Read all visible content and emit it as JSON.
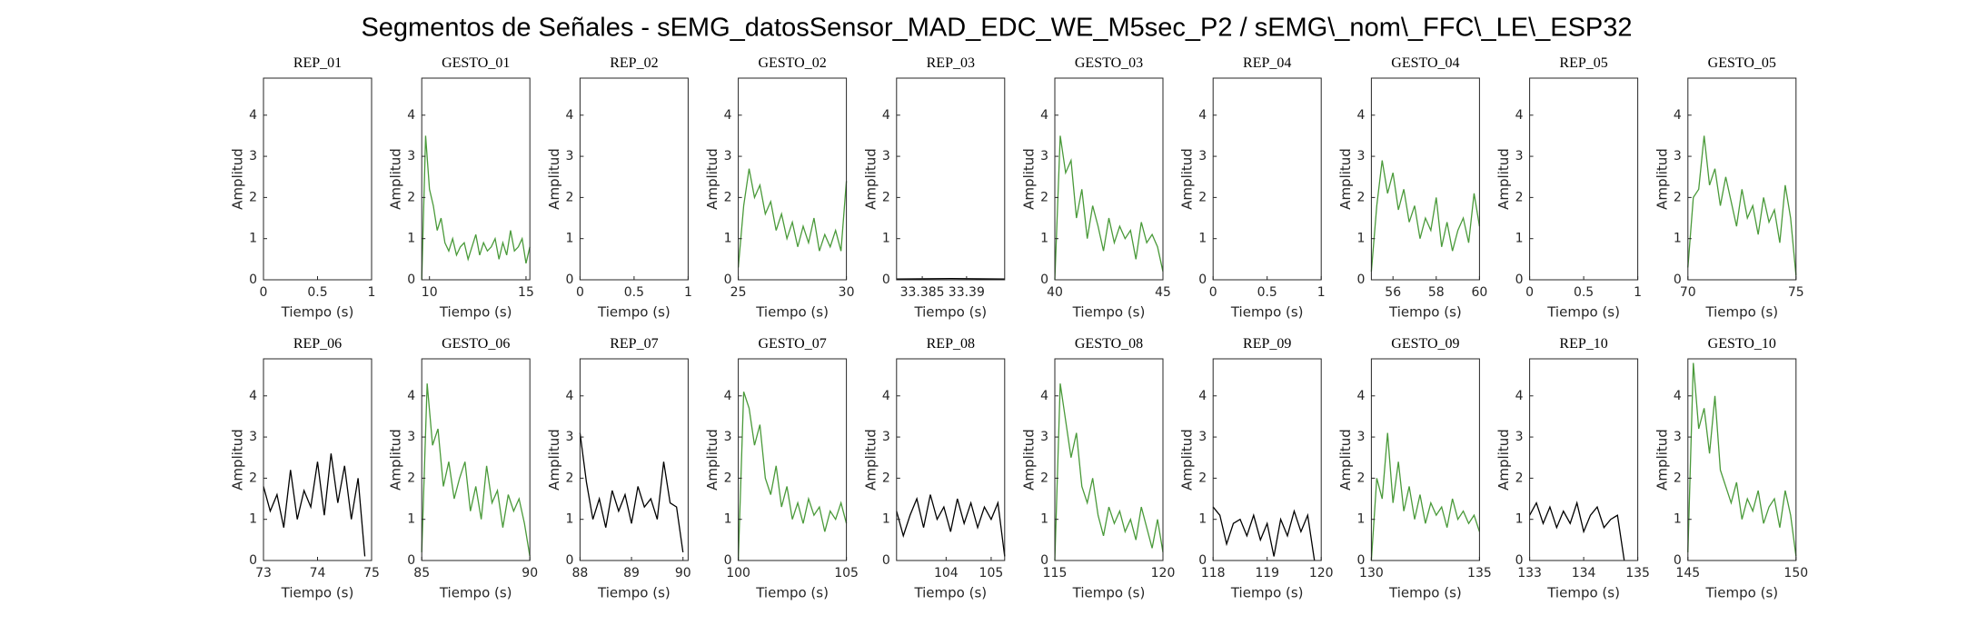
{
  "title": "Segmentos de Señales - sEMG_datosSensor_MAD_EDC_WE_M5sec_P2 / sEMG\\_nom\\_FFC\\_LE\\_ESP32",
  "chart_data": [
    {
      "type": "line",
      "title": "REP_01",
      "xlabel": "Tiempo (s)",
      "ylabel": "Amplitud",
      "xlim": [
        0,
        1
      ],
      "xticks": [
        0,
        0.5,
        1
      ],
      "ylim": [
        0,
        4.9
      ],
      "yticks": [
        0,
        1,
        2,
        3,
        4
      ]
    },
    {
      "type": "line",
      "title": "GESTO_01",
      "xlabel": "Tiempo (s)",
      "ylabel": "Amplitud",
      "xlim": [
        9.6,
        15.2
      ],
      "xticks": [
        10,
        15
      ],
      "ylim": [
        0,
        4.9
      ],
      "yticks": [
        0,
        1,
        2,
        3,
        4
      ],
      "color": "#4a9a3a",
      "x": [
        9.6,
        9.8,
        10,
        10.2,
        10.4,
        10.6,
        10.8,
        11,
        11.2,
        11.4,
        11.6,
        11.8,
        12,
        12.2,
        12.4,
        12.6,
        12.8,
        13,
        13.2,
        13.4,
        13.6,
        13.8,
        14,
        14.2,
        14.4,
        14.6,
        14.8,
        15,
        15.2
      ],
      "values": [
        0,
        3.5,
        2.2,
        1.8,
        1.2,
        1.5,
        0.9,
        0.7,
        1.0,
        0.6,
        0.8,
        0.9,
        0.5,
        0.8,
        1.1,
        0.6,
        0.9,
        0.7,
        0.8,
        1.0,
        0.5,
        0.9,
        0.6,
        1.2,
        0.7,
        0.8,
        1.0,
        0.4,
        0.8
      ]
    },
    {
      "type": "line",
      "title": "REP_02",
      "xlabel": "Tiempo (s)",
      "ylabel": "Amplitud",
      "xlim": [
        0,
        1
      ],
      "xticks": [
        0,
        0.5,
        1
      ],
      "ylim": [
        0,
        4.9
      ],
      "yticks": [
        0,
        1,
        2,
        3,
        4
      ]
    },
    {
      "type": "line",
      "title": "GESTO_02",
      "xlabel": "Tiempo (s)",
      "ylabel": "Amplitud",
      "xlim": [
        25,
        30
      ],
      "xticks": [
        25,
        30
      ],
      "ylim": [
        0,
        4.9
      ],
      "yticks": [
        0,
        1,
        2,
        3,
        4
      ],
      "color": "#4a9a3a",
      "x": [
        25,
        25.25,
        25.5,
        25.75,
        26,
        26.25,
        26.5,
        26.75,
        27,
        27.25,
        27.5,
        27.75,
        28,
        28.25,
        28.5,
        28.75,
        29,
        29.25,
        29.5,
        29.75,
        30
      ],
      "values": [
        0.3,
        1.8,
        2.7,
        2.0,
        2.3,
        1.6,
        1.9,
        1.2,
        1.6,
        1.0,
        1.4,
        0.8,
        1.3,
        0.9,
        1.5,
        0.7,
        1.1,
        0.8,
        1.2,
        0.7,
        2.4
      ]
    },
    {
      "type": "line",
      "title": "REP_03",
      "xlabel": "Tiempo (s)",
      "ylabel": "Amplitud",
      "xlim": [
        33.3821,
        33.3943
      ],
      "xticks": [
        33.385,
        33.39
      ],
      "ylim": [
        0,
        4.9
      ],
      "yticks": [
        0,
        1,
        2,
        3,
        4
      ],
      "color": "#000000",
      "x": [
        33.3821,
        33.3882,
        33.3943
      ],
      "values": [
        0.02,
        0.03,
        0.02
      ]
    },
    {
      "type": "line",
      "title": "GESTO_03",
      "xlabel": "Tiempo (s)",
      "ylabel": "Amplitud",
      "xlim": [
        40,
        45
      ],
      "xticks": [
        40,
        45
      ],
      "ylim": [
        0,
        4.9
      ],
      "yticks": [
        0,
        1,
        2,
        3,
        4
      ],
      "color": "#4a9a3a",
      "x": [
        40,
        40.25,
        40.5,
        40.75,
        41,
        41.25,
        41.5,
        41.75,
        42,
        42.25,
        42.5,
        42.75,
        43,
        43.25,
        43.5,
        43.75,
        44,
        44.25,
        44.5,
        44.75,
        45
      ],
      "values": [
        0,
        3.5,
        2.6,
        2.9,
        1.5,
        2.2,
        1.0,
        1.8,
        1.3,
        0.7,
        1.5,
        0.9,
        1.3,
        1.0,
        1.2,
        0.5,
        1.4,
        0.9,
        1.1,
        0.8,
        0.2
      ]
    },
    {
      "type": "line",
      "title": "REP_04",
      "xlabel": "Tiempo (s)",
      "ylabel": "Amplitud",
      "xlim": [
        0,
        1
      ],
      "xticks": [
        0,
        0.5,
        1
      ],
      "ylim": [
        0,
        4.9
      ],
      "yticks": [
        0,
        1,
        2,
        3,
        4
      ]
    },
    {
      "type": "line",
      "title": "GESTO_04",
      "xlabel": "Tiempo (s)",
      "ylabel": "Amplitud",
      "xlim": [
        55,
        60
      ],
      "xticks": [
        56,
        58,
        60
      ],
      "ylim": [
        0,
        4.9
      ],
      "yticks": [
        0,
        1,
        2,
        3,
        4
      ],
      "color": "#4a9a3a",
      "x": [
        55,
        55.25,
        55.5,
        55.75,
        56,
        56.25,
        56.5,
        56.75,
        57,
        57.25,
        57.5,
        57.75,
        58,
        58.25,
        58.5,
        58.75,
        59,
        59.25,
        59.5,
        59.75,
        60
      ],
      "values": [
        0.2,
        1.8,
        2.9,
        2.1,
        2.6,
        1.7,
        2.2,
        1.4,
        1.8,
        1.0,
        1.5,
        1.2,
        2.0,
        0.8,
        1.4,
        0.7,
        1.2,
        1.5,
        0.9,
        2.1,
        1.3
      ]
    },
    {
      "type": "line",
      "title": "REP_05",
      "xlabel": "Tiempo (s)",
      "ylabel": "Amplitud",
      "xlim": [
        0,
        1
      ],
      "xticks": [
        0,
        0.5,
        1
      ],
      "ylim": [
        0,
        4.9
      ],
      "yticks": [
        0,
        1,
        2,
        3,
        4
      ]
    },
    {
      "type": "line",
      "title": "GESTO_05",
      "xlabel": "Tiempo (s)",
      "ylabel": "Amplitud",
      "xlim": [
        70,
        75
      ],
      "xticks": [
        70,
        75
      ],
      "ylim": [
        0,
        4.9
      ],
      "yticks": [
        0,
        1,
        2,
        3,
        4
      ],
      "color": "#4a9a3a",
      "x": [
        70,
        70.25,
        70.5,
        70.75,
        71,
        71.25,
        71.5,
        71.75,
        72,
        72.25,
        72.5,
        72.75,
        73,
        73.25,
        73.5,
        73.75,
        74,
        74.25,
        74.5,
        74.75,
        75
      ],
      "values": [
        0.3,
        2.0,
        2.2,
        3.5,
        2.3,
        2.7,
        1.8,
        2.5,
        1.9,
        1.3,
        2.2,
        1.5,
        1.8,
        1.1,
        2.0,
        1.4,
        1.7,
        0.9,
        2.3,
        1.5,
        0.1
      ]
    },
    {
      "type": "line",
      "title": "REP_06",
      "xlabel": "Tiempo (s)",
      "ylabel": "Amplitud",
      "xlim": [
        73,
        75
      ],
      "xticks": [
        73,
        74,
        75
      ],
      "ylim": [
        0,
        4.9
      ],
      "yticks": [
        0,
        1,
        2,
        3,
        4
      ],
      "color": "#000000",
      "x": [
        73,
        73.125,
        73.25,
        73.375,
        73.5,
        73.625,
        73.75,
        73.875,
        74,
        74.125,
        74.25,
        74.375,
        74.5,
        74.625,
        74.75,
        74.875
      ],
      "values": [
        1.8,
        1.2,
        1.6,
        0.8,
        2.2,
        1.0,
        1.7,
        1.3,
        2.4,
        1.1,
        2.6,
        1.4,
        2.3,
        1.0,
        2.0,
        0.1
      ]
    },
    {
      "type": "line",
      "title": "GESTO_06",
      "xlabel": "Tiempo (s)",
      "ylabel": "Amplitud",
      "xlim": [
        85,
        90
      ],
      "xticks": [
        85,
        90
      ],
      "ylim": [
        0,
        4.9
      ],
      "yticks": [
        0,
        1,
        2,
        3,
        4
      ],
      "color": "#4a9a3a",
      "x": [
        85,
        85.25,
        85.5,
        85.75,
        86,
        86.25,
        86.5,
        86.75,
        87,
        87.25,
        87.5,
        87.75,
        88,
        88.25,
        88.5,
        88.75,
        89,
        89.25,
        89.5,
        89.75,
        90
      ],
      "values": [
        0.2,
        4.3,
        2.8,
        3.2,
        1.8,
        2.4,
        1.5,
        2.0,
        2.4,
        1.2,
        1.8,
        1.0,
        2.3,
        1.4,
        1.7,
        0.8,
        1.6,
        1.2,
        1.5,
        0.9,
        0.1
      ]
    },
    {
      "type": "line",
      "title": "REP_07",
      "xlabel": "Tiempo (s)",
      "ylabel": "Amplitud",
      "xlim": [
        88,
        90.1
      ],
      "xticks": [
        88,
        89,
        90
      ],
      "ylim": [
        0,
        4.9
      ],
      "yticks": [
        0,
        1,
        2,
        3,
        4
      ],
      "color": "#000000",
      "x": [
        88,
        88.125,
        88.25,
        88.375,
        88.5,
        88.625,
        88.75,
        88.875,
        89,
        89.125,
        89.25,
        89.375,
        89.5,
        89.625,
        89.75,
        89.875,
        90
      ],
      "values": [
        3.1,
        1.9,
        1.0,
        1.5,
        0.8,
        1.7,
        1.2,
        1.6,
        0.9,
        1.8,
        1.3,
        1.5,
        1.0,
        2.4,
        1.4,
        1.3,
        0.2
      ]
    },
    {
      "type": "line",
      "title": "GESTO_07",
      "xlabel": "Tiempo (s)",
      "ylabel": "Amplitud",
      "xlim": [
        100,
        105
      ],
      "xticks": [
        100,
        105
      ],
      "ylim": [
        0,
        4.9
      ],
      "yticks": [
        0,
        1,
        2,
        3,
        4
      ],
      "color": "#4a9a3a",
      "x": [
        100,
        100.25,
        100.5,
        100.75,
        101,
        101.25,
        101.5,
        101.75,
        102,
        102.25,
        102.5,
        102.75,
        103,
        103.25,
        103.5,
        103.75,
        104,
        104.25,
        104.5,
        104.75,
        105
      ],
      "values": [
        0,
        4.1,
        3.7,
        2.8,
        3.3,
        2.0,
        1.6,
        2.3,
        1.3,
        1.8,
        1.0,
        1.4,
        0.9,
        1.5,
        1.1,
        1.3,
        0.7,
        1.2,
        1.0,
        1.4,
        0.9
      ]
    },
    {
      "type": "line",
      "title": "REP_08",
      "xlabel": "Tiempo (s)",
      "ylabel": "Amplitud",
      "xlim": [
        102.9,
        105.3
      ],
      "xticks": [
        104,
        105
      ],
      "ylim": [
        0,
        4.9
      ],
      "yticks": [
        0,
        1,
        2,
        3,
        4
      ],
      "color": "#000000",
      "x": [
        102.9,
        103.05,
        103.2,
        103.35,
        103.5,
        103.65,
        103.8,
        103.95,
        104.1,
        104.25,
        104.4,
        104.55,
        104.7,
        104.85,
        105,
        105.15,
        105.3
      ],
      "values": [
        1.2,
        0.6,
        1.1,
        1.5,
        0.8,
        1.6,
        1.0,
        1.3,
        0.7,
        1.5,
        0.9,
        1.4,
        0.8,
        1.3,
        1.0,
        1.4,
        0.1
      ]
    },
    {
      "type": "line",
      "title": "GESTO_08",
      "xlabel": "Tiempo (s)",
      "ylabel": "Amplitud",
      "xlim": [
        115,
        120
      ],
      "xticks": [
        115,
        120
      ],
      "ylim": [
        0,
        4.9
      ],
      "yticks": [
        0,
        1,
        2,
        3,
        4
      ],
      "color": "#4a9a3a",
      "x": [
        115,
        115.25,
        115.5,
        115.75,
        116,
        116.25,
        116.5,
        116.75,
        117,
        117.25,
        117.5,
        117.75,
        118,
        118.25,
        118.5,
        118.75,
        119,
        119.25,
        119.5,
        119.75,
        120
      ],
      "values": [
        0,
        4.3,
        3.4,
        2.5,
        3.1,
        1.8,
        1.4,
        2.0,
        1.1,
        0.6,
        1.3,
        0.9,
        1.2,
        0.7,
        1.0,
        0.5,
        1.3,
        0.8,
        0.3,
        1.0,
        0.2
      ]
    },
    {
      "type": "line",
      "title": "REP_09",
      "xlabel": "Tiempo (s)",
      "ylabel": "Amplitud",
      "xlim": [
        118,
        120
      ],
      "xticks": [
        118,
        119,
        120
      ],
      "ylim": [
        0,
        4.9
      ],
      "yticks": [
        0,
        1,
        2,
        3,
        4
      ],
      "color": "#000000",
      "x": [
        118,
        118.125,
        118.25,
        118.375,
        118.5,
        118.625,
        118.75,
        118.875,
        119,
        119.125,
        119.25,
        119.375,
        119.5,
        119.625,
        119.75,
        119.875
      ],
      "values": [
        1.3,
        1.1,
        0.4,
        0.9,
        1.0,
        0.6,
        1.1,
        0.5,
        0.9,
        0.1,
        1.0,
        0.6,
        1.2,
        0.7,
        1.1,
        0
      ]
    },
    {
      "type": "line",
      "title": "GESTO_09",
      "xlabel": "Tiempo (s)",
      "ylabel": "Amplitud",
      "xlim": [
        130,
        135
      ],
      "xticks": [
        130,
        135
      ],
      "ylim": [
        0,
        4.9
      ],
      "yticks": [
        0,
        1,
        2,
        3,
        4
      ],
      "color": "#4a9a3a",
      "x": [
        130,
        130.25,
        130.5,
        130.75,
        131,
        131.25,
        131.5,
        131.75,
        132,
        132.25,
        132.5,
        132.75,
        133,
        133.25,
        133.5,
        133.75,
        134,
        134.25,
        134.5,
        134.75,
        135
      ],
      "values": [
        0,
        2.0,
        1.5,
        3.1,
        1.4,
        2.4,
        1.2,
        1.8,
        1.0,
        1.6,
        0.9,
        1.4,
        1.1,
        1.3,
        0.8,
        1.5,
        1.0,
        1.2,
        0.9,
        1.1,
        0.7
      ]
    },
    {
      "type": "line",
      "title": "REP_10",
      "xlabel": "Tiempo (s)",
      "ylabel": "Amplitud",
      "xlim": [
        133,
        135
      ],
      "xticks": [
        133,
        134,
        135
      ],
      "ylim": [
        0,
        4.9
      ],
      "yticks": [
        0,
        1,
        2,
        3,
        4
      ],
      "color": "#000000",
      "x": [
        133,
        133.125,
        133.25,
        133.375,
        133.5,
        133.625,
        133.75,
        133.875,
        134,
        134.125,
        134.25,
        134.375,
        134.5,
        134.625,
        134.75
      ],
      "values": [
        1.1,
        1.4,
        0.9,
        1.3,
        0.8,
        1.2,
        0.9,
        1.4,
        0.7,
        1.1,
        1.3,
        0.8,
        1.0,
        1.1,
        0
      ]
    },
    {
      "type": "line",
      "title": "GESTO_10",
      "xlabel": "Tiempo (s)",
      "ylabel": "Amplitud",
      "xlim": [
        145,
        150
      ],
      "xticks": [
        145,
        150
      ],
      "ylim": [
        0,
        4.9
      ],
      "yticks": [
        0,
        1,
        2,
        3,
        4
      ],
      "color": "#4a9a3a",
      "x": [
        145,
        145.25,
        145.5,
        145.75,
        146,
        146.25,
        146.5,
        146.75,
        147,
        147.25,
        147.5,
        147.75,
        148,
        148.25,
        148.5,
        148.75,
        149,
        149.25,
        149.5,
        149.75,
        150
      ],
      "values": [
        0.2,
        4.8,
        3.2,
        3.7,
        2.6,
        4.0,
        2.2,
        1.8,
        1.4,
        1.9,
        1.0,
        1.5,
        1.2,
        1.7,
        0.9,
        1.3,
        1.5,
        0.8,
        1.7,
        1.1,
        0.1
      ]
    }
  ]
}
